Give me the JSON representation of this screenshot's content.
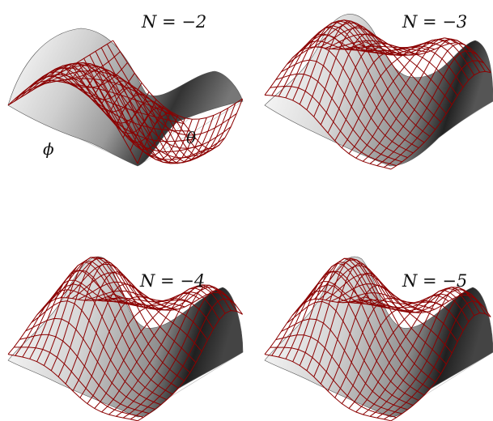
{
  "panels": [
    {
      "label": "N = −2",
      "shape": "A"
    },
    {
      "label": "N = −3",
      "shape": "B"
    },
    {
      "label": "N = −4",
      "shape": "C"
    },
    {
      "label": "N = −5",
      "shape": "C"
    }
  ],
  "axes": {
    "phi": "ϕ",
    "theta": "θ"
  },
  "colors": {
    "mesh": "#8b0000",
    "surface_light": "#ffffff",
    "surface_dark": "#2a2a2a",
    "grid": "#bdbdbd"
  }
}
